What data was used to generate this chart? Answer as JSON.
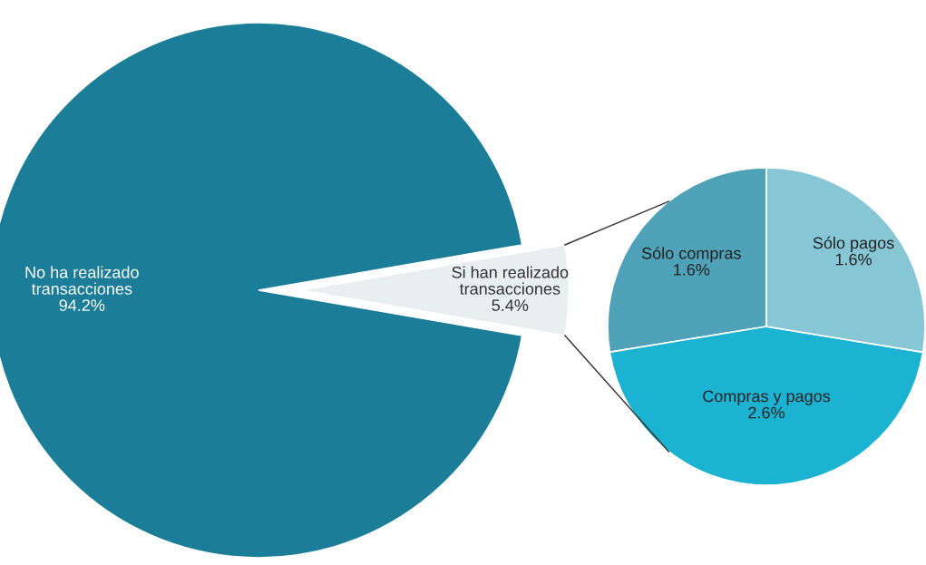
{
  "chart_data": [
    {
      "type": "pie",
      "categories": [
        "No ha realizado\ntransacciones",
        "Si han realizado\ntransacciones"
      ],
      "values": [
        94.2,
        5.4
      ],
      "value_labels": [
        "94.2%",
        "5.4%"
      ],
      "colors": [
        "#1b7d97",
        "#e9eff1"
      ]
    },
    {
      "type": "pie",
      "categories": [
        "Sólo compras",
        "Compras y pagos",
        "Sólo pagos"
      ],
      "values": [
        1.6,
        2.6,
        1.6
      ],
      "value_labels": [
        "1.6%",
        "2.6%",
        "1.6%"
      ],
      "colors": [
        "#4fa2b7",
        "#1cb2d2",
        "#86c6d5"
      ]
    }
  ]
}
